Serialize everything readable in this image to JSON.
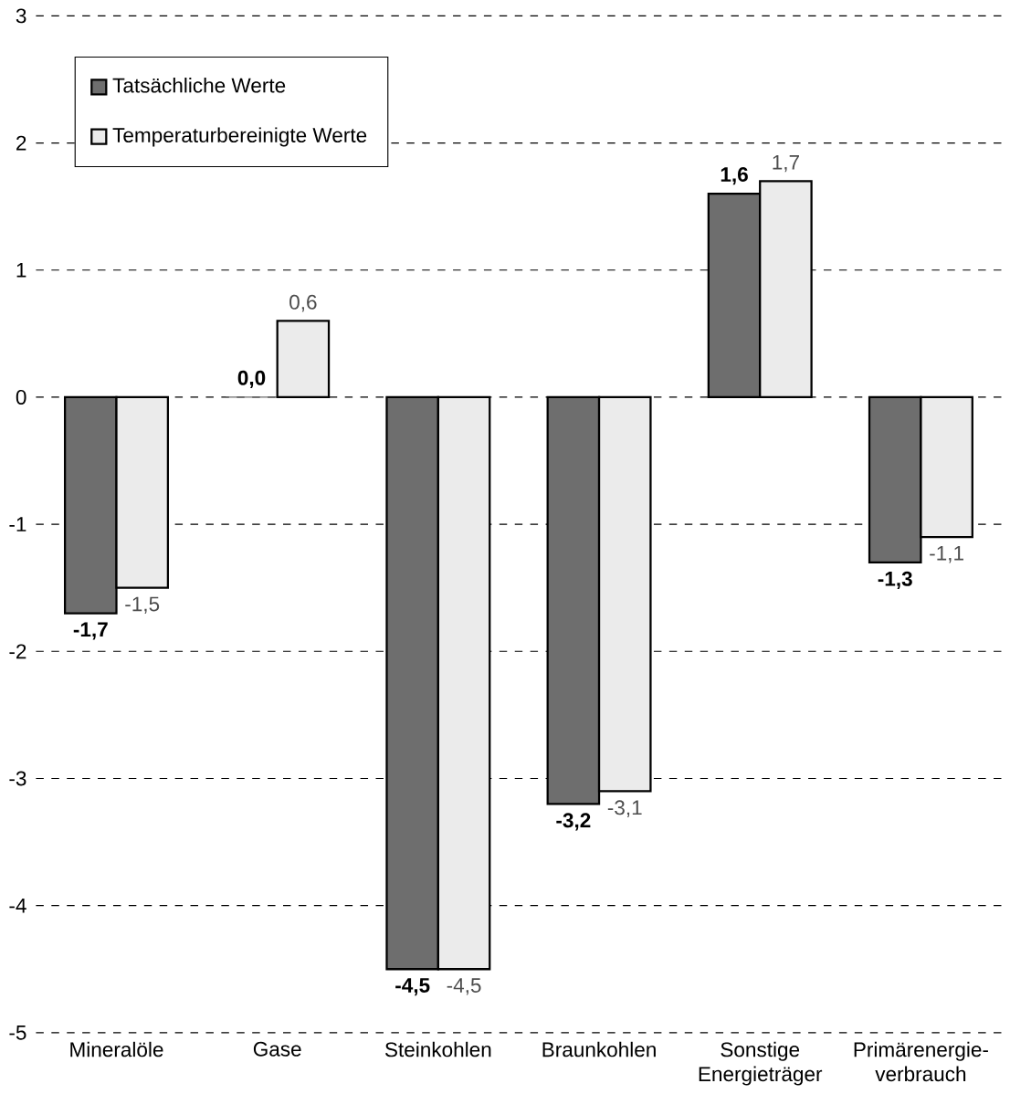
{
  "chart_data": {
    "type": "bar",
    "categories": [
      "Mineralöle",
      "Gase",
      "Steinkohlen",
      "Braunkohlen",
      "Sonstige Energieträger",
      "Primärenergie-verbrauch"
    ],
    "series": [
      {
        "name": "Tatsächliche Werte",
        "color": "#6e6e6e",
        "values": [
          -1.7,
          0.0,
          -4.5,
          -3.2,
          1.6,
          -1.3
        ],
        "value_labels": [
          "-1,7",
          "0,0",
          "-4,5",
          "-3,2",
          "1,6",
          "-1,3"
        ]
      },
      {
        "name": "Temperaturbereinigte Werte",
        "color": "#ebebeb",
        "values": [
          -1.5,
          0.6,
          -4.5,
          -3.1,
          1.7,
          -1.1
        ],
        "value_labels": [
          "-1,5",
          "0,6",
          "-4,5",
          "-3,1",
          "1,7",
          "-1,1"
        ]
      }
    ],
    "ylim": [
      -5,
      3
    ],
    "yticks": [
      -5,
      -4,
      -3,
      -2,
      -1,
      0,
      1,
      2,
      3
    ],
    "grid": "y",
    "legend": "top left"
  }
}
